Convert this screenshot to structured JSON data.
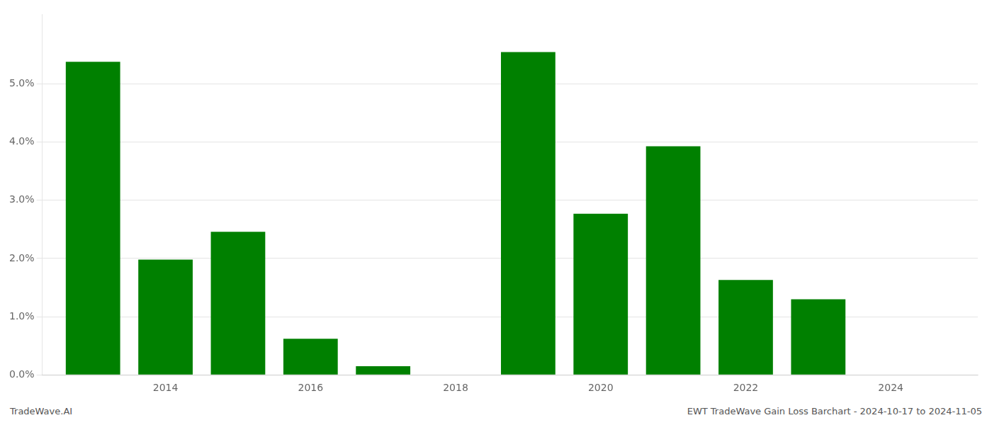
{
  "chart_data": {
    "type": "bar",
    "x": [
      2013,
      2014,
      2015,
      2016,
      2017,
      2018,
      2019,
      2020,
      2021,
      2022,
      2023
    ],
    "values": [
      0.0538,
      0.0198,
      0.0246,
      0.0062,
      0.0015,
      0.0,
      0.0555,
      0.0277,
      0.0393,
      0.0163,
      0.013
    ],
    "color": "#008000",
    "xlim": [
      2012.3,
      2025.2
    ],
    "xticks": [
      2014,
      2016,
      2018,
      2020,
      2022,
      2024
    ],
    "ylim": [
      0,
      0.062
    ],
    "yticks": [
      {
        "value": 0.0,
        "label": "0.0%"
      },
      {
        "value": 0.01,
        "label": "1.0%"
      },
      {
        "value": 0.02,
        "label": "2.0%"
      },
      {
        "value": 0.03,
        "label": "3.0%"
      },
      {
        "value": 0.04,
        "label": "4.0%"
      },
      {
        "value": 0.05,
        "label": "5.0%"
      }
    ],
    "grid": true,
    "annotations": [
      "TradeWave.AI",
      "EWT TradeWave Gain Loss Barchart - 2024-10-17 to 2024-11-05"
    ]
  }
}
